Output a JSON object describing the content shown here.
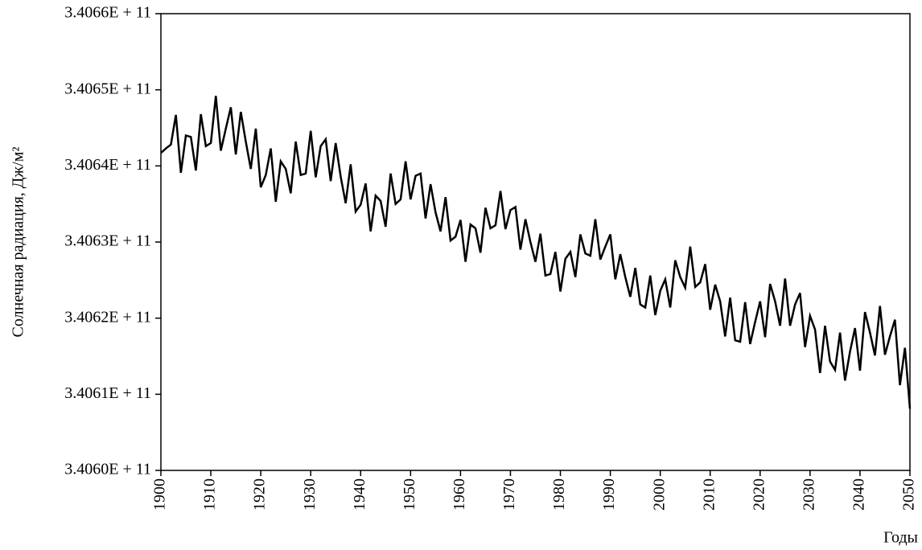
{
  "chart_data": {
    "type": "line",
    "y_label": "Солнечная радиация, Дж/м²",
    "x_label": "Годы",
    "color": "#000000",
    "x": [
      1900,
      1901,
      1902,
      1903,
      1904,
      1905,
      1906,
      1907,
      1908,
      1909,
      1910,
      1911,
      1912,
      1913,
      1914,
      1915,
      1916,
      1917,
      1918,
      1919,
      1920,
      1921,
      1922,
      1923,
      1924,
      1925,
      1926,
      1927,
      1928,
      1929,
      1930,
      1931,
      1932,
      1933,
      1934,
      1935,
      1936,
      1937,
      1938,
      1939,
      1940,
      1941,
      1942,
      1943,
      1944,
      1945,
      1946,
      1947,
      1948,
      1949,
      1950,
      1951,
      1952,
      1953,
      1954,
      1955,
      1956,
      1957,
      1958,
      1959,
      1960,
      1961,
      1962,
      1963,
      1964,
      1965,
      1966,
      1967,
      1968,
      1969,
      1970,
      1971,
      1972,
      1973,
      1974,
      1975,
      1976,
      1977,
      1978,
      1979,
      1980,
      1981,
      1982,
      1983,
      1984,
      1985,
      1986,
      1987,
      1988,
      1989,
      1990,
      1991,
      1992,
      1993,
      1994,
      1995,
      1996,
      1997,
      1998,
      1999,
      2000,
      2001,
      2002,
      2003,
      2004,
      2005,
      2006,
      2007,
      2008,
      2009,
      2010,
      2011,
      2012,
      2013,
      2014,
      2015,
      2016,
      2017,
      2018,
      2019,
      2020,
      2021,
      2022,
      2023,
      2024,
      2025,
      2026,
      2027,
      2028,
      2029,
      2030,
      2031,
      2032,
      2033,
      2034,
      2035,
      2036,
      2037,
      2038,
      2039,
      2040,
      2041,
      2042,
      2043,
      2044,
      2045,
      2046,
      2047,
      2048,
      2049,
      2050
    ],
    "values": [
      340641700000,
      340642300000,
      340642800000,
      340646700000,
      340639100000,
      340644000000,
      340643800000,
      340639400000,
      340646800000,
      340642600000,
      340643000000,
      340649200000,
      340642000000,
      340644900000,
      340647700000,
      340641500000,
      340647100000,
      340643200000,
      340639600000,
      340644900000,
      340637200000,
      340638800000,
      340642300000,
      340635300000,
      340640600000,
      340639600000,
      340636400000,
      340643200000,
      340638800000,
      340639000000,
      340644600000,
      340638500000,
      340642600000,
      340643500000,
      340638000000,
      340643000000,
      340638600000,
      340635100000,
      340640200000,
      340634000000,
      340634900000,
      340637700000,
      340631400000,
      340636100000,
      340635400000,
      340632000000,
      340639000000,
      340635000000,
      340635600000,
      340640600000,
      340635600000,
      340638700000,
      340639000000,
      340633100000,
      340637600000,
      340633900000,
      340631400000,
      340635900000,
      340630200000,
      340630700000,
      340632900000,
      340627400000,
      340632300000,
      340631800000,
      340628600000,
      340634500000,
      340631800000,
      340632200000,
      340636700000,
      340631700000,
      340634200000,
      340634600000,
      340629000000,
      340633000000,
      340630000000,
      340627400000,
      340631100000,
      340625600000,
      340625800000,
      340628700000,
      340623500000,
      340627800000,
      340628700000,
      340625400000,
      340631000000,
      340628500000,
      340628200000,
      340633000000,
      340627700000,
      340629400000,
      340631000000,
      340625100000,
      340628400000,
      340625400000,
      340622800000,
      340626600000,
      340621800000,
      340621400000,
      340625600000,
      340620400000,
      340623600000,
      340625100000,
      340621400000,
      340627600000,
      340625400000,
      340624000000,
      340629400000,
      340624100000,
      340624700000,
      340627100000,
      340621100000,
      340624400000,
      340622200000,
      340617600000,
      340622700000,
      340617100000,
      340616900000,
      340622100000,
      340616600000,
      340619500000,
      340622200000,
      340617500000,
      340624500000,
      340622200000,
      340619000000,
      340625200000,
      340619000000,
      340621800000,
      340623300000,
      340616200000,
      340620300000,
      340618500000,
      340612800000,
      340619000000,
      340614300000,
      340613200000,
      340618100000,
      340611800000,
      340615600000,
      340618700000,
      340613100000,
      340620800000,
      340618100000,
      340615100000,
      340621600000,
      340615200000,
      340617600000,
      340619800000,
      340611200000,
      340616100000,
      340608100000
    ],
    "xlim": [
      1900,
      2050
    ],
    "xticks": [
      1900,
      1910,
      1920,
      1930,
      1940,
      1950,
      1960,
      1970,
      1980,
      1990,
      2000,
      2010,
      2020,
      2030,
      2040,
      2050
    ],
    "ylim": [
      340600000000,
      340660000000
    ],
    "yticks": [
      {
        "value": 340600000000,
        "label": "3.4060E + 11"
      },
      {
        "value": 340610000000,
        "label": "3.4061E + 11"
      },
      {
        "value": 340620000000,
        "label": "3.4062E + 11"
      },
      {
        "value": 340630000000,
        "label": "3.4063E + 11"
      },
      {
        "value": 340640000000,
        "label": "3.4064E + 11"
      },
      {
        "value": 340650000000,
        "label": "3.4065E + 11"
      },
      {
        "value": 340660000000,
        "label": "3.4066E + 11"
      }
    ]
  }
}
